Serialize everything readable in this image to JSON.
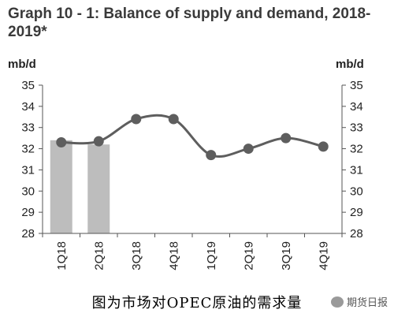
{
  "chart_data": {
    "type": "line",
    "title": "Graph 10 - 1: Balance of supply and demand, 2018-2019*",
    "ylabel_left": "mb/d",
    "ylabel_right": "mb/d",
    "ylim": [
      28,
      35
    ],
    "yticks": [
      28,
      29,
      30,
      31,
      32,
      33,
      34,
      35
    ],
    "categories": [
      "1Q18",
      "2Q18",
      "3Q18",
      "4Q18",
      "1Q19",
      "2Q19",
      "3Q19",
      "4Q19"
    ],
    "bars": [
      32.4,
      32.2,
      null,
      null,
      null,
      null,
      null,
      null
    ],
    "line": [
      32.3,
      32.35,
      33.4,
      33.4,
      31.7,
      32.0,
      32.5,
      32.1
    ],
    "colors": {
      "bar": "#bdbdbd",
      "line": "#5e5e5e",
      "title": "#3a3a3a"
    },
    "grid": false
  },
  "caption": "图为市场对OPEC原油的需求量",
  "watermark": "期货日报"
}
